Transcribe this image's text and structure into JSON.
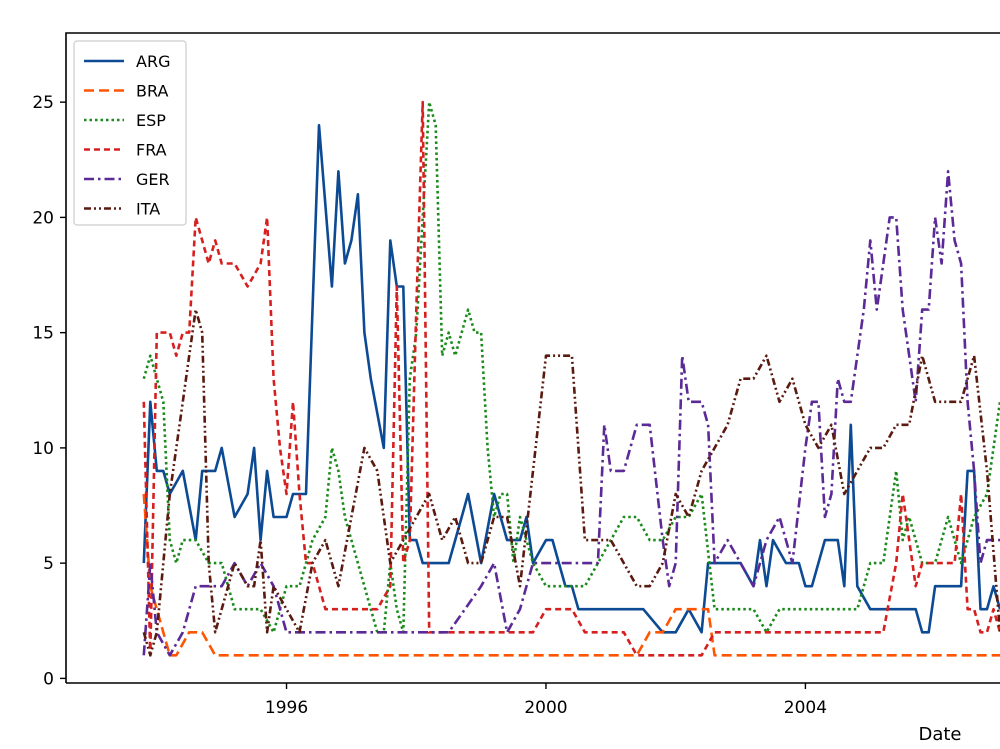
{
  "chart_data": {
    "type": "line",
    "title": "",
    "xlabel": "Date",
    "ylabel": "",
    "xlim": [
      1992.6,
      2007.0
    ],
    "ylim": [
      -0.2,
      28.0
    ],
    "x_ticks": [
      1996,
      2000,
      2004
    ],
    "x_tick_labels": [
      "1996",
      "2000",
      "2004"
    ],
    "y_ticks": [
      0,
      5,
      10,
      15,
      20,
      25
    ],
    "y_tick_labels": [
      "0",
      "5",
      "10",
      "15",
      "20",
      "25"
    ],
    "grid": false,
    "legend_position": "top-left",
    "series": [
      {
        "name": "ARG",
        "color": "#0d4a94",
        "dash": "solid",
        "x": [
          1993.8,
          1993.9,
          1994.0,
          1994.1,
          1994.2,
          1994.4,
          1994.6,
          1994.7,
          1994.8,
          1994.9,
          1995.0,
          1995.2,
          1995.4,
          1995.5,
          1995.6,
          1995.7,
          1995.8,
          1995.9,
          1996.0,
          1996.1,
          1996.2,
          1996.3,
          1996.5,
          1996.7,
          1996.8,
          1996.9,
          1997.0,
          1997.1,
          1997.2,
          1997.3,
          1997.5,
          1997.6,
          1997.7,
          1997.8,
          1997.9,
          1998.0,
          1998.1,
          1998.2,
          1998.4,
          1998.5,
          1998.6,
          1998.7,
          1998.8,
          1999.0,
          1999.2,
          1999.4,
          1999.6,
          1999.7,
          1999.8,
          2000.0,
          2000.1,
          2000.2,
          2000.3,
          2000.4,
          2000.5,
          2000.6,
          2000.7,
          2000.9,
          2001.2,
          2001.5,
          2001.8,
          2002.0,
          2002.2,
          2002.4,
          2002.5,
          2002.6,
          2002.8,
          2003.0,
          2003.2,
          2003.3,
          2003.4,
          2003.5,
          2003.7,
          2003.8,
          2003.9,
          2004.0,
          2004.1,
          2004.2,
          2004.3,
          2004.5,
          2004.6,
          2004.7,
          2004.8,
          2005.0,
          2005.2,
          2005.4,
          2005.5,
          2005.6,
          2005.7,
          2005.8,
          2005.9,
          2006.0,
          2006.2,
          2006.3,
          2006.4,
          2006.5,
          2006.6,
          2006.7,
          2006.8,
          2006.9,
          2007.0
        ],
        "y": [
          5,
          12,
          9,
          9,
          8,
          9,
          6,
          9,
          9,
          9,
          10,
          7,
          8,
          10,
          6,
          9,
          7,
          7,
          7,
          8,
          8,
          8,
          24,
          17,
          22,
          18,
          19,
          21,
          15,
          13,
          10,
          19,
          17,
          17,
          6,
          6,
          5,
          5,
          5,
          5,
          6,
          7,
          8,
          5,
          8,
          6,
          6,
          7,
          5,
          6,
          6,
          5,
          4,
          4,
          3,
          3,
          3,
          3,
          3,
          3,
          2,
          2,
          3,
          2,
          5,
          5,
          5,
          5,
          4,
          6,
          4,
          6,
          5,
          5,
          5,
          4,
          4,
          5,
          6,
          6,
          4,
          11,
          4,
          3,
          3,
          3,
          3,
          3,
          3,
          2,
          2,
          4,
          4,
          4,
          4,
          9,
          9,
          3,
          3,
          4,
          3
        ]
      },
      {
        "name": "BRA",
        "color": "#ff5500",
        "dash": "long",
        "x": [
          1993.8,
          1993.9,
          1994.0,
          1994.1,
          1994.2,
          1994.3,
          1994.5,
          1994.7,
          1994.9,
          1995.2,
          1996.0,
          1998.0,
          2000.0,
          2001.0,
          2001.4,
          2001.6,
          2001.8,
          2002.0,
          2002.2,
          2002.5,
          2002.6,
          2002.8,
          2004.0,
          2006.0,
          2007.0
        ],
        "y": [
          8,
          4,
          3,
          2,
          1,
          1,
          2,
          2,
          1,
          1,
          1,
          1,
          1,
          1,
          1,
          2,
          2,
          3,
          3,
          3,
          1,
          1,
          1,
          1,
          1
        ]
      },
      {
        "name": "ESP",
        "color": "#1a8a1a",
        "dash": "dot",
        "x": [
          1993.8,
          1993.9,
          1994.0,
          1994.1,
          1994.2,
          1994.3,
          1994.4,
          1994.6,
          1994.8,
          1995.0,
          1995.2,
          1995.4,
          1995.6,
          1995.8,
          1996.0,
          1996.2,
          1996.4,
          1996.6,
          1996.7,
          1996.8,
          1996.9,
          1997.0,
          1997.1,
          1997.2,
          1997.3,
          1997.4,
          1997.5,
          1997.6,
          1997.7,
          1997.8,
          1997.9,
          1998.0,
          1998.1,
          1998.2,
          1998.3,
          1998.4,
          1998.5,
          1998.6,
          1998.7,
          1998.8,
          1998.9,
          1999.0,
          1999.1,
          1999.2,
          1999.3,
          1999.4,
          1999.5,
          1999.6,
          1999.8,
          2000.0,
          2000.2,
          2000.4,
          2000.6,
          2000.8,
          2001.0,
          2001.2,
          2001.4,
          2001.6,
          2001.8,
          2002.0,
          2002.2,
          2002.4,
          2002.6,
          2002.8,
          2003.0,
          2003.2,
          2003.4,
          2003.6,
          2003.8,
          2004.0,
          2004.2,
          2004.4,
          2004.6,
          2004.8,
          2005.0,
          2005.2,
          2005.3,
          2005.4,
          2005.5,
          2005.6,
          2005.8,
          2006.0,
          2006.2,
          2006.4,
          2006.6,
          2006.8,
          2006.9,
          2007.0
        ],
        "y": [
          13,
          14,
          13,
          12,
          6,
          5,
          6,
          6,
          5,
          5,
          3,
          3,
          3,
          2,
          4,
          4,
          6,
          7,
          10,
          9,
          7,
          6,
          5,
          4,
          3,
          2,
          2,
          5,
          3,
          2,
          13,
          15,
          20,
          25,
          24,
          14,
          15,
          14,
          15,
          16,
          15,
          15,
          10,
          7,
          8,
          8,
          5,
          7,
          5,
          4,
          4,
          4,
          4,
          5,
          6,
          7,
          7,
          6,
          6,
          7,
          7,
          8,
          3,
          3,
          3,
          3,
          2,
          3,
          3,
          3,
          3,
          3,
          3,
          3,
          5,
          5,
          7,
          9,
          6,
          7,
          5,
          5,
          7,
          5,
          7,
          8,
          10,
          12
        ]
      },
      {
        "name": "FRA",
        "color": "#d62020",
        "dash": "dash",
        "x": [
          1993.8,
          1993.9,
          1994.0,
          1994.1,
          1994.2,
          1994.3,
          1994.4,
          1994.5,
          1994.6,
          1994.7,
          1994.8,
          1994.9,
          1995.0,
          1995.2,
          1995.4,
          1995.6,
          1995.7,
          1995.8,
          1995.9,
          1996.0,
          1996.1,
          1996.2,
          1996.3,
          1996.4,
          1996.6,
          1996.8,
          1997.0,
          1997.2,
          1997.4,
          1997.6,
          1997.7,
          1997.8,
          1997.9,
          1998.0,
          1998.1,
          1998.2,
          1998.3,
          1998.4,
          1998.5,
          1998.6,
          1998.8,
          1999.0,
          1999.2,
          1999.4,
          1999.6,
          1999.8,
          2000.0,
          2000.2,
          2000.4,
          2000.6,
          2000.8,
          2001.0,
          2001.2,
          2001.4,
          2001.6,
          2001.8,
          2002.0,
          2002.2,
          2002.4,
          2002.6,
          2002.8,
          2003.0,
          2003.5,
          2004.0,
          2004.5,
          2005.0,
          2005.2,
          2005.4,
          2005.5,
          2005.6,
          2005.7,
          2005.8,
          2006.0,
          2006.2,
          2006.3,
          2006.4,
          2006.5,
          2006.6,
          2006.7,
          2006.8,
          2006.9,
          2007.0
        ],
        "y": [
          12,
          1,
          15,
          15,
          15,
          14,
          15,
          15,
          20,
          19,
          18,
          19,
          18,
          18,
          17,
          18,
          20,
          13,
          10,
          8,
          12,
          8,
          5,
          5,
          3,
          3,
          3,
          3,
          3,
          4,
          17,
          5,
          6,
          16,
          25,
          2,
          2,
          2,
          2,
          2,
          2,
          2,
          2,
          2,
          2,
          2,
          3,
          3,
          3,
          2,
          2,
          2,
          2,
          1,
          1,
          1,
          1,
          1,
          1,
          2,
          2,
          2,
          2,
          2,
          2,
          2,
          2,
          5,
          8,
          6,
          4,
          5,
          5,
          5,
          5,
          8,
          3,
          3,
          2,
          2,
          3,
          2
        ]
      },
      {
        "name": "GER",
        "color": "#5b2a96",
        "dash": "dashdot",
        "x": [
          1993.8,
          1993.9,
          1994.0,
          1994.2,
          1994.4,
          1994.6,
          1994.8,
          1995.0,
          1995.2,
          1995.4,
          1995.6,
          1995.8,
          1996.0,
          1996.5,
          1997.0,
          1997.4,
          1997.6,
          1997.8,
          1998.0,
          1998.5,
          1999.0,
          1999.2,
          1999.4,
          1999.6,
          1999.8,
          2000.0,
          2000.2,
          2000.4,
          2000.6,
          2000.8,
          2000.9,
          2001.0,
          2001.2,
          2001.4,
          2001.6,
          2001.8,
          2001.9,
          2002.0,
          2002.1,
          2002.2,
          2002.4,
          2002.5,
          2002.6,
          2002.8,
          2003.0,
          2003.2,
          2003.4,
          2003.6,
          2003.8,
          2004.0,
          2004.1,
          2004.2,
          2004.3,
          2004.4,
          2004.5,
          2004.6,
          2004.7,
          2004.8,
          2004.9,
          2005.0,
          2005.1,
          2005.2,
          2005.3,
          2005.4,
          2005.5,
          2005.6,
          2005.7,
          2005.8,
          2005.9,
          2006.0,
          2006.1,
          2006.2,
          2006.3,
          2006.4,
          2006.5,
          2006.6,
          2006.7,
          2006.8,
          2006.9,
          2007.0
        ],
        "y": [
          1,
          5,
          2,
          1,
          2,
          4,
          4,
          4,
          5,
          4,
          5,
          4,
          2,
          2,
          2,
          2,
          2,
          2,
          2,
          2,
          4,
          5,
          2,
          3,
          5,
          5,
          5,
          5,
          5,
          5,
          11,
          9,
          9,
          11,
          11,
          6,
          4,
          5,
          14,
          12,
          12,
          11,
          5,
          6,
          5,
          4,
          6,
          7,
          5,
          10,
          12,
          12,
          7,
          8,
          13,
          12,
          12,
          14,
          16,
          19,
          16,
          18,
          20,
          20,
          16,
          14,
          12,
          16,
          16,
          20,
          18,
          22,
          19,
          18,
          12,
          9,
          5,
          6,
          6,
          6
        ]
      },
      {
        "name": "ITA",
        "color": "#5a1a10",
        "dash": "dashdotdot",
        "x": [
          1993.8,
          1993.9,
          1994.0,
          1994.2,
          1994.4,
          1994.5,
          1994.6,
          1994.7,
          1994.8,
          1994.9,
          1995.0,
          1995.2,
          1995.4,
          1995.5,
          1995.6,
          1995.7,
          1995.8,
          1996.0,
          1996.2,
          1996.4,
          1996.6,
          1996.8,
          1997.0,
          1997.2,
          1997.4,
          1997.6,
          1997.8,
          1998.0,
          1998.2,
          1998.4,
          1998.6,
          1998.8,
          1999.0,
          1999.2,
          1999.4,
          1999.6,
          1999.8,
          2000.0,
          2000.2,
          2000.4,
          2000.6,
          2000.8,
          2001.0,
          2001.2,
          2001.4,
          2001.6,
          2001.8,
          2002.0,
          2002.2,
          2002.4,
          2002.6,
          2002.8,
          2003.0,
          2003.2,
          2003.4,
          2003.6,
          2003.8,
          2004.0,
          2004.2,
          2004.4,
          2004.6,
          2004.8,
          2005.0,
          2005.2,
          2005.4,
          2005.6,
          2005.8,
          2006.0,
          2006.2,
          2006.4,
          2006.6,
          2006.8,
          2007.0
        ],
        "y": [
          2,
          1,
          2,
          8,
          12,
          14,
          16,
          15,
          5,
          2,
          3,
          5,
          4,
          4,
          6,
          2,
          4,
          3,
          2,
          5,
          6,
          4,
          7,
          10,
          9,
          5,
          6,
          7,
          8,
          6,
          7,
          5,
          5,
          7,
          7,
          4,
          9,
          14,
          14,
          14,
          6,
          6,
          6,
          5,
          4,
          4,
          5,
          8,
          7,
          9,
          10,
          11,
          13,
          13,
          14,
          12,
          13,
          11,
          10,
          11,
          8,
          9,
          10,
          10,
          11,
          11,
          14,
          12,
          12,
          12,
          14,
          9,
          2
        ]
      }
    ]
  }
}
